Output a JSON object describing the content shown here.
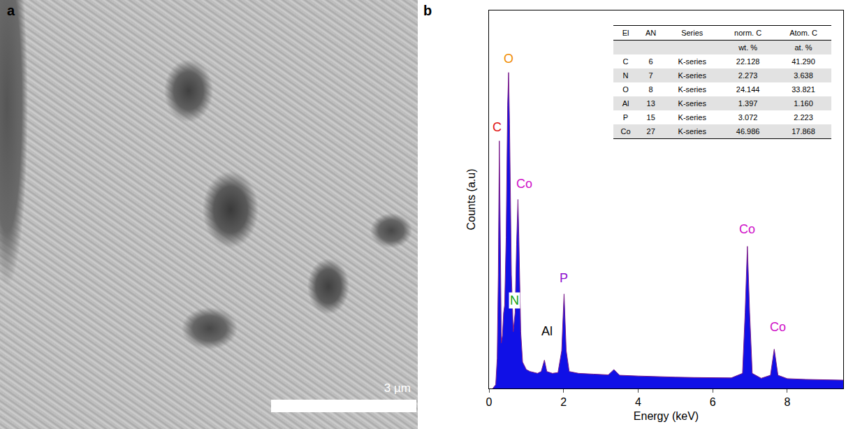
{
  "image_panel": {
    "letter": "a",
    "scale_bar_label": "3 µm"
  },
  "chart_data": {
    "panel_letter": "b",
    "type": "line",
    "x_label": "Energy (keV)",
    "y_label": "Counts (a.u)",
    "color": "#1010e6",
    "xlim": [
      0,
      9.5
    ],
    "xticks": [
      0,
      2,
      4,
      6,
      8
    ],
    "ylim": [
      0,
      100
    ],
    "tick_labels": "x",
    "grid": false,
    "x": [
      0.1,
      0.18,
      0.22,
      0.25,
      0.277,
      0.3,
      0.33,
      0.36,
      0.392,
      0.42,
      0.46,
      0.5,
      0.525,
      0.55,
      0.6,
      0.65,
      0.7,
      0.74,
      0.776,
      0.8,
      0.85,
      0.9,
      1.0,
      1.1,
      1.2,
      1.3,
      1.4,
      1.486,
      1.55,
      1.7,
      1.85,
      1.95,
      2.013,
      2.07,
      2.15,
      2.4,
      2.8,
      3.2,
      3.35,
      3.5,
      4.0,
      4.5,
      5.0,
      5.5,
      6.0,
      6.5,
      6.8,
      6.87,
      6.93,
      6.99,
      7.06,
      7.3,
      7.55,
      7.65,
      7.75,
      8.0,
      8.5,
      9.0,
      9.5
    ],
    "values": [
      0,
      1,
      8,
      30,
      65.5,
      35,
      12,
      14,
      20,
      22,
      40,
      75,
      83.6,
      70,
      30,
      15,
      20,
      38,
      50,
      40,
      15,
      7,
      5,
      4.5,
      4.2,
      4,
      4.5,
      7.5,
      4.5,
      4,
      4.2,
      10,
      25,
      10,
      4.5,
      4,
      3.8,
      3.6,
      5,
      3.5,
      3.3,
      3.1,
      3,
      2.9,
      2.8,
      2.8,
      4,
      20,
      37.6,
      20,
      4,
      2.7,
      3.5,
      10.4,
      3.5,
      2.6,
      2.4,
      2.3,
      2.2
    ],
    "annotations": [
      {
        "text": "O",
        "x": 0.525,
        "y": 85,
        "color": "#f08c00"
      },
      {
        "text": "C",
        "x": 0.22,
        "y": 67,
        "color": "#e01010"
      },
      {
        "text": "Co",
        "x": 0.95,
        "y": 52,
        "color": "#d010c8"
      },
      {
        "text": "N",
        "x": 0.68,
        "y": 21,
        "color": "#10a010"
      },
      {
        "text": "Al",
        "x": 1.55,
        "y": 13,
        "color": "#000000"
      },
      {
        "text": "P",
        "x": 2.013,
        "y": 27,
        "color": "#9010d0"
      },
      {
        "text": "Co",
        "x": 6.93,
        "y": 40,
        "color": "#d010c8"
      },
      {
        "text": "Co",
        "x": 7.75,
        "y": 14,
        "color": "#d010c8"
      }
    ],
    "table": {
      "columns": [
        {
          "name": "El"
        },
        {
          "name": "AN"
        },
        {
          "name": "Series"
        },
        {
          "name": "norm. C",
          "unit": "wt. %"
        },
        {
          "name": "Atom. C",
          "unit": "at. %"
        }
      ],
      "rows": [
        [
          "C",
          "6",
          "K-series",
          "22.128",
          "41.290"
        ],
        [
          "N",
          "7",
          "K-series",
          "2.273",
          "3.638"
        ],
        [
          "O",
          "8",
          "K-series",
          "24.144",
          "33.821"
        ],
        [
          "Al",
          "13",
          "K-series",
          "1.397",
          "1.160"
        ],
        [
          "P",
          "15",
          "K-series",
          "3.072",
          "2.223"
        ],
        [
          "Co",
          "27",
          "K-series",
          "46.986",
          "17.868"
        ]
      ]
    }
  }
}
